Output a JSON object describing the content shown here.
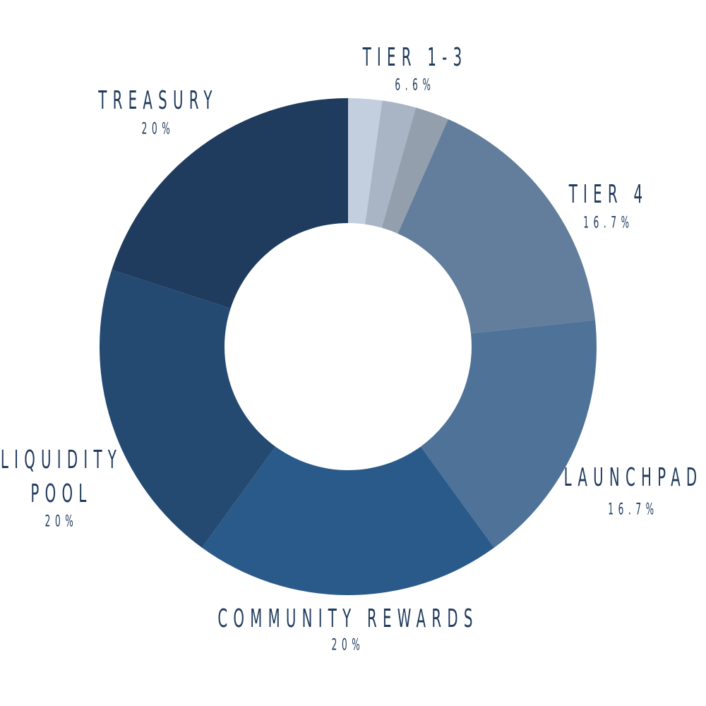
{
  "chart_data": {
    "type": "donut",
    "segments": [
      {
        "label": "TIER 1-3",
        "value": 6.6,
        "value_label": "6.6%",
        "parts": [
          2.2,
          2.2,
          2.2
        ],
        "colors": [
          "#c3cfdf",
          "#a9b5c5",
          "#939fad"
        ]
      },
      {
        "label": "TIER 4",
        "value": 16.7,
        "value_label": "16.7%",
        "color": "#627e9c"
      },
      {
        "label": "LAUNCHPAD",
        "value": 16.7,
        "value_label": "16.7%",
        "color": "#4e7298"
      },
      {
        "label": "COMMUNITY REWARDS",
        "value": 20,
        "value_label": "20%",
        "color": "#2a5a8a"
      },
      {
        "label": "LIQUIDITY POOL",
        "value": 20,
        "value_label": "20%",
        "color": "#244a72"
      },
      {
        "label": "TREASURY",
        "value": 20,
        "value_label": "20%",
        "color": "#1f3c5e"
      }
    ]
  }
}
